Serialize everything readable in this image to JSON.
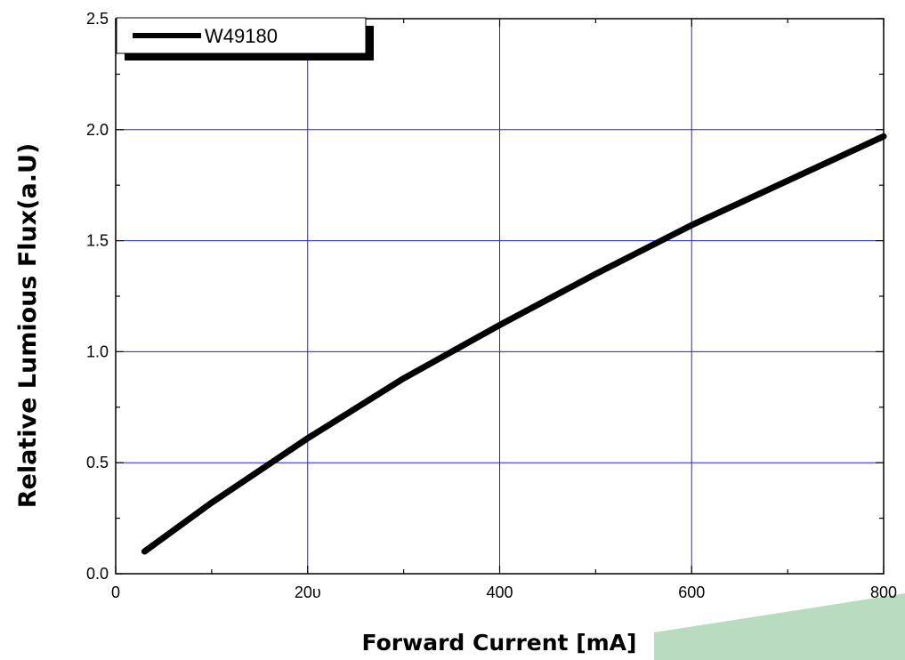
{
  "chart_data": {
    "type": "line",
    "xlabel": "Forward Current [mA]",
    "ylabel": "Relative Lumious Flux(a.U)",
    "xlim": [
      0,
      800
    ],
    "ylim": [
      0,
      2.5
    ],
    "x_ticks": [
      0,
      200,
      400,
      600,
      800
    ],
    "x_tick_labels": [
      "0",
      "20υ",
      "400",
      "600",
      "800"
    ],
    "y_ticks": [
      0.0,
      0.5,
      1.0,
      1.5,
      2.0,
      2.5
    ],
    "y_tick_labels": [
      "0.0",
      "0.5",
      "1.0",
      "1.5",
      "2.0",
      "2.5"
    ],
    "grid": true,
    "legend_position": "top-left",
    "series": [
      {
        "name": "W49180",
        "color": "#000000",
        "x": [
          30,
          100,
          200,
          300,
          350,
          400,
          500,
          600,
          700,
          800
        ],
        "y": [
          0.1,
          0.32,
          0.61,
          0.88,
          1.0,
          1.12,
          1.35,
          1.57,
          1.77,
          1.97
        ]
      }
    ]
  },
  "colors": {
    "grid": "#2020e0",
    "line": "#000000",
    "accent_band": "#b9dcc0"
  }
}
